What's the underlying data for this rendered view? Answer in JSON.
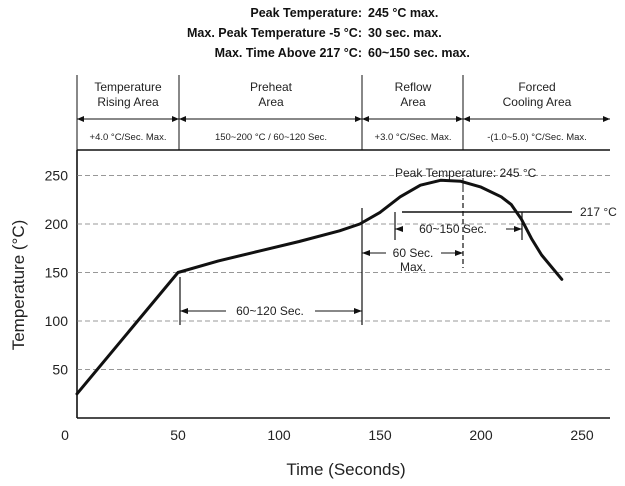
{
  "specs": [
    {
      "label": "Peak Temperature:",
      "value": "245 °C max."
    },
    {
      "label": "Max. Peak Temperature -5 °C:",
      "value": "30 sec. max."
    },
    {
      "label": "Max. Time Above 217 °C:",
      "value": "60~150 sec. max."
    }
  ],
  "zones": [
    {
      "line1": "Temperature",
      "line2": "Rising Area",
      "rate": "+4.0 °C/Sec. Max."
    },
    {
      "line1": "Preheat",
      "line2": "Area",
      "rate": "150~200 °C / 60~120 Sec."
    },
    {
      "line1": "Reflow",
      "line2": "Area",
      "rate": "+3.0 °C/Sec. Max."
    },
    {
      "line1": "Forced",
      "line2": "Cooling Area",
      "rate": "-(1.0~5.0) °C/Sec. Max."
    }
  ],
  "annotations": {
    "peak_label": "Peak Temperature: 245 °C",
    "line_217": "217 °C",
    "dur_60_150": "60~150 Sec.",
    "dur_60_max_line1": "60 Sec.",
    "dur_60_max_line2": "Max.",
    "dur_60_120": "60~120 Sec."
  },
  "chart_data": {
    "type": "line",
    "xlabel": "Time (Seconds)",
    "ylabel": "Temperature (°C)",
    "xlim": [
      0,
      270
    ],
    "ylim": [
      0,
      275
    ],
    "x_ticks": [
      0,
      50,
      100,
      150,
      200,
      250
    ],
    "y_ticks": [
      50,
      100,
      150,
      200,
      250
    ],
    "grid": "horizontal dashed",
    "series": [
      {
        "x": [
          0,
          50,
          70,
          90,
          110,
          130,
          140,
          150,
          160,
          170,
          180,
          190,
          200,
          210,
          215,
          220,
          225,
          230,
          240
        ],
        "y": [
          25,
          150,
          162,
          172,
          182,
          193,
          200,
          212,
          228,
          240,
          245,
          244,
          238,
          228,
          220,
          205,
          185,
          168,
          143
        ]
      }
    ],
    "color": "#111111"
  }
}
